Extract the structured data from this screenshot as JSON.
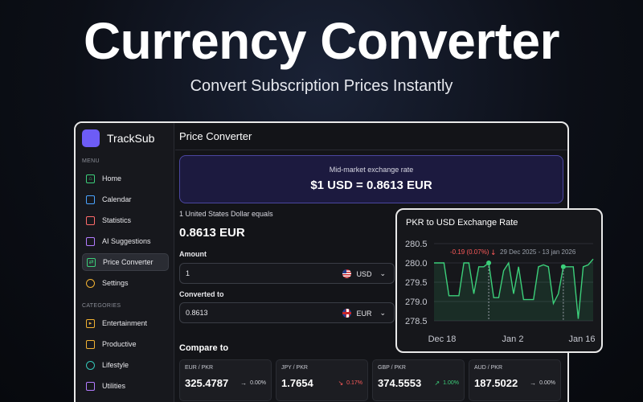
{
  "hero": {
    "title": "Currency Converter",
    "subtitle": "Convert Subscription Prices Instantly"
  },
  "app": {
    "brand": "TrackSub",
    "menu_label": "MENU",
    "menu": [
      {
        "label": "Home",
        "icon": "home-icon"
      },
      {
        "label": "Calendar",
        "icon": "calendar-icon"
      },
      {
        "label": "Statistics",
        "icon": "statistics-icon"
      },
      {
        "label": "AI Suggestions",
        "icon": "ai-suggestions-icon"
      },
      {
        "label": "Price Converter",
        "icon": "price-converter-icon",
        "active": true
      },
      {
        "label": "Settings",
        "icon": "settings-icon"
      }
    ],
    "categories_label": "CATEGORIES",
    "categories": [
      {
        "label": "Entertainment",
        "icon": "entertainment-icon"
      },
      {
        "label": "Productive",
        "icon": "productive-icon"
      },
      {
        "label": "Lifestyle",
        "icon": "lifestyle-icon"
      },
      {
        "label": "Utilities",
        "icon": "utilities-icon"
      }
    ]
  },
  "converter": {
    "header": "Price Converter",
    "rate_label": "Mid-market exchange rate",
    "rate_value": "$1 USD = 0.8613 EUR",
    "equals_label": "1 United States Dollar equals",
    "equals_value": "0.8613 EUR",
    "amount_label": "Amount",
    "amount_value": "1",
    "amount_currency": "USD",
    "converted_label": "Converted to",
    "converted_value": "0.8613",
    "converted_currency": "EUR",
    "compare_title": "Compare to",
    "compare": [
      {
        "pair": "EUR / PKR",
        "value": "325.4787",
        "change": "0.00%",
        "trend": "flat"
      },
      {
        "pair": "JPY / PKR",
        "value": "1.7654",
        "change": "0.17%",
        "trend": "down"
      },
      {
        "pair": "GBP / PKR",
        "value": "374.5553",
        "change": "1.00%",
        "trend": "up"
      },
      {
        "pair": "AUD / PKR",
        "value": "187.5022",
        "change": "0.00%",
        "trend": "flat"
      }
    ]
  },
  "colors": {
    "accent": "#6d5cf6",
    "up": "#3ccf7a",
    "down": "#ff5a5a",
    "line": "#3ccf7a"
  },
  "chart_data": {
    "type": "line",
    "title": "PKR to USD Exchange Rate",
    "ylim": [
      278.5,
      280.5
    ],
    "yticks": [
      "280.5",
      "280.0",
      "279.5",
      "279.0",
      "278.5"
    ],
    "xticks": [
      "Dec 18",
      "Jan 2",
      "Jan 16"
    ],
    "tooltip": {
      "change": "-0.19 (0.07%)",
      "range": "29 Dec 2025 - 13 jan 2026"
    },
    "series": [
      {
        "values": [
          280.0,
          280.0,
          280.0,
          279.15,
          279.15,
          279.15,
          280.0,
          280.0,
          279.2,
          279.9,
          279.9,
          280.0,
          279.1,
          279.1,
          279.8,
          280.0,
          279.2,
          279.9,
          279.05,
          279.05,
          279.05,
          279.9,
          279.95,
          279.9,
          278.95,
          279.2,
          279.9,
          279.9,
          279.9,
          278.55,
          279.9,
          279.95,
          280.1
        ]
      }
    ]
  }
}
